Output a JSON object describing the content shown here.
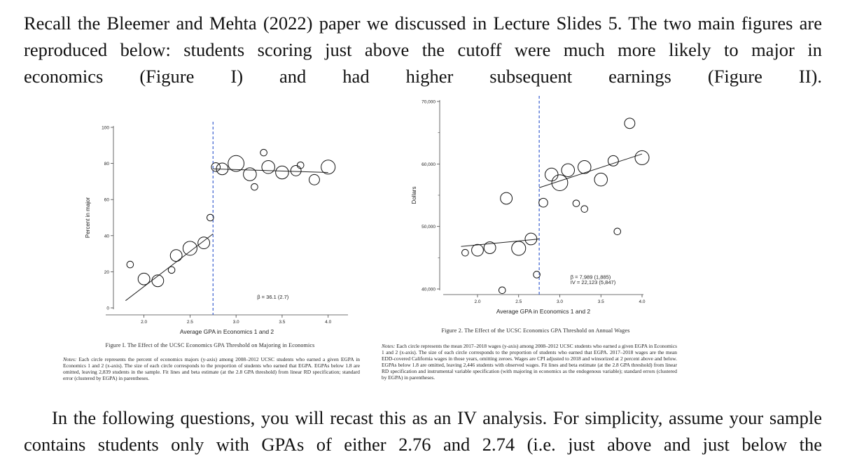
{
  "intro": {
    "main": "Recall the Bleemer and Mehta (2022) paper we discussed in Lecture Slides 5. The two main figures are reproduced below: students scoring just above the cutoff were much more likely to major in",
    "last": "economics (Figure I) and had higher subsequent earnings (Figure II)."
  },
  "figure1": {
    "caption": "Figure I. The Effect of the UCSC Economics GPA Threshold on Majoring in Economics",
    "notes_label": "Notes:",
    "notes": "Each circle represents the percent of economics majors (y-axis) among 2008–2012 UCSC students who earned a given EGPA in Economics 1 and 2 (x-axis). The size of each circle corresponds to the proportion of students who earned that EGPA. EGPAs below 1.8 are omitted, leaving 2,839 students in the sample. Fit lines and beta estimate (at the 2.8 GPA threshold) from linear RD specification; standard error (clustered by EGPA) in parentheses.",
    "chart_data": {
      "type": "scatter",
      "title": "",
      "xlabel": "Average GPA in Economics 1 and 2",
      "ylabel": "Percent in major",
      "xlim": [
        1.6,
        4.2
      ],
      "ylim": [
        0,
        100
      ],
      "xticks": [
        "2.0",
        "2.5",
        "3.0",
        "3.5",
        "4.0"
      ],
      "yticks": [
        "0",
        "20",
        "40",
        "60",
        "80",
        "100"
      ],
      "cutoff": 2.75,
      "annotation": "β = 36.1 (2.7)",
      "points": [
        {
          "x": 1.85,
          "y": 24,
          "size": 1
        },
        {
          "x": 2.0,
          "y": 16,
          "size": 4
        },
        {
          "x": 2.15,
          "y": 15,
          "size": 4
        },
        {
          "x": 2.3,
          "y": 21,
          "size": 1
        },
        {
          "x": 2.35,
          "y": 29,
          "size": 4
        },
        {
          "x": 2.5,
          "y": 33,
          "size": 6
        },
        {
          "x": 2.65,
          "y": 36,
          "size": 4
        },
        {
          "x": 2.72,
          "y": 50,
          "size": 1
        },
        {
          "x": 2.78,
          "y": 78,
          "size": 2
        },
        {
          "x": 2.85,
          "y": 77,
          "size": 4
        },
        {
          "x": 3.0,
          "y": 80,
          "size": 8
        },
        {
          "x": 3.15,
          "y": 74,
          "size": 5
        },
        {
          "x": 3.2,
          "y": 67,
          "size": 1
        },
        {
          "x": 3.3,
          "y": 86,
          "size": 1
        },
        {
          "x": 3.35,
          "y": 78,
          "size": 5
        },
        {
          "x": 3.5,
          "y": 75,
          "size": 5
        },
        {
          "x": 3.65,
          "y": 76,
          "size": 3
        },
        {
          "x": 3.7,
          "y": 79,
          "size": 1
        },
        {
          "x": 3.85,
          "y": 71,
          "size": 3
        },
        {
          "x": 4.0,
          "y": 78,
          "size": 6
        }
      ],
      "fit_left": [
        [
          1.8,
          4
        ],
        [
          2.75,
          41
        ]
      ],
      "fit_right": [
        [
          2.75,
          77
        ],
        [
          4.0,
          75
        ]
      ]
    }
  },
  "figure2": {
    "caption": "Figure 2. The Effect of the UCSC Economics GPA Threshold on Annual Wages",
    "notes_label": "Notes:",
    "notes": "Each circle represents the mean 2017–2018 wages (y-axis) among 2008–2012 UCSC students who earned a given EGPA in Economics 1 and 2 (x-axis). The size of each circle corresponds to the proportion of students who earned that EGPA. 2017–2018 wages are the mean EDD-covered California wages in those years, omitting zeroes. Wages are CPI adjusted to 2018 and winsorized at 2 percent above and below. EGPAs below 1.8 are omitted, leaving 2,446 students with observed wages. Fit lines and beta estimate (at the 2.8 GPA threshold) from linear RD specification and instrumental variable specification (with majoring in economics as the endogenous variable); standard errors (clustered by EGPA) in parentheses.",
    "chart_data": {
      "type": "scatter",
      "title": "",
      "xlabel": "Average GPA in Economics 1 and 2",
      "ylabel": "Dollars",
      "xlim": [
        1.6,
        4.0
      ],
      "ylim": [
        40000,
        70000
      ],
      "xticks": [
        "2.0",
        "2.5",
        "3.0",
        "3.5",
        "4.0"
      ],
      "yticks": [
        "40,000",
        "50,000",
        "60,000",
        "70,000"
      ],
      "cutoff": 2.75,
      "annotation_beta": "β = 7,989 (1,885)",
      "annotation_iv": "IV = 22,123 (5,847)",
      "points": [
        {
          "x": 1.85,
          "y": 45800,
          "size": 1
        },
        {
          "x": 2.0,
          "y": 46200,
          "size": 4
        },
        {
          "x": 2.15,
          "y": 46600,
          "size": 4
        },
        {
          "x": 2.3,
          "y": 39800,
          "size": 1
        },
        {
          "x": 2.35,
          "y": 54500,
          "size": 4
        },
        {
          "x": 2.5,
          "y": 46500,
          "size": 6
        },
        {
          "x": 2.65,
          "y": 48000,
          "size": 4
        },
        {
          "x": 2.72,
          "y": 42300,
          "size": 1
        },
        {
          "x": 2.8,
          "y": 53800,
          "size": 2
        },
        {
          "x": 2.9,
          "y": 58300,
          "size": 5
        },
        {
          "x": 3.0,
          "y": 57000,
          "size": 8
        },
        {
          "x": 3.1,
          "y": 59000,
          "size": 5
        },
        {
          "x": 3.2,
          "y": 53700,
          "size": 1
        },
        {
          "x": 3.3,
          "y": 52800,
          "size": 1
        },
        {
          "x": 3.3,
          "y": 59500,
          "size": 5
        },
        {
          "x": 3.5,
          "y": 57500,
          "size": 5
        },
        {
          "x": 3.65,
          "y": 60500,
          "size": 3
        },
        {
          "x": 3.7,
          "y": 49200,
          "size": 1
        },
        {
          "x": 3.85,
          "y": 66500,
          "size": 3
        },
        {
          "x": 4.0,
          "y": 61000,
          "size": 6
        }
      ],
      "fit_left": [
        [
          1.8,
          46800
        ],
        [
          2.75,
          48000
        ]
      ],
      "fit_right": [
        [
          2.75,
          56200
        ],
        [
          4.0,
          61600
        ]
      ]
    }
  },
  "outro": {
    "main": "In the following questions, you will recast this as an IV analysis. For simplicity, assume your sample contains students only with GPAs of either 2.76 and 2.74 (i.e. just above and just below the"
  }
}
